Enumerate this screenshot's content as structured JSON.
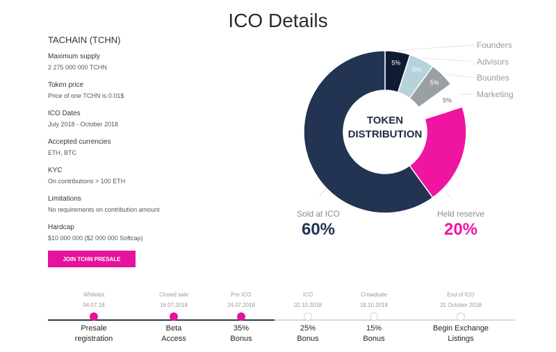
{
  "page": {
    "title": "ICO Details"
  },
  "details": {
    "token_name": "TACHAIN (TCHN)",
    "items": [
      {
        "label": "Maximum supply",
        "value": "2 275 000 000 TCHN"
      },
      {
        "label": "Token price",
        "value": "Price of one TCHN is 0.01$"
      },
      {
        "label": "ICO Dates",
        "value": "July 2018 - October 2018"
      },
      {
        "label": "Accepted currencies",
        "value": "ETH, BTC"
      },
      {
        "label": "KYC",
        "value": "On contributions > 100 ETH"
      },
      {
        "label": "Limitations",
        "value": "No requirements on contribution amount"
      },
      {
        "label": "Hardcap",
        "value": "$10 000 000 ($2 000 000 Softcap)"
      }
    ],
    "button": "JOIN TCHN PRESALE"
  },
  "chart_data": {
    "type": "pie",
    "donut": true,
    "center_title": [
      "TOKEN",
      "DISTRIBUTION"
    ],
    "slices": [
      {
        "name": "Founders",
        "value": 5,
        "label": "5%",
        "color": "#0e1b33"
      },
      {
        "name": "Advisors",
        "value": 5,
        "label": "5%",
        "color": "#b6d3dc"
      },
      {
        "name": "Bounties",
        "value": 5,
        "label": "5%",
        "color": "#9a9fa4"
      },
      {
        "name": "Marketing",
        "value": 5,
        "label": "5%",
        "color": "#ffffff"
      },
      {
        "name": "Held reserve",
        "value": 20,
        "label": "20%",
        "color": "#ef14a2"
      },
      {
        "name": "Sold at ICO",
        "value": 60,
        "label": "60%",
        "color": "#233352"
      }
    ],
    "legend": [
      "Founders",
      "Advisors",
      "Bounties",
      "Marketing"
    ],
    "legend_position": "right",
    "callouts": [
      {
        "caption": "Sold at ICO",
        "value": "60%",
        "color": "#233352"
      },
      {
        "caption": "Held reserve",
        "value": "20%",
        "color": "#ef14a2"
      }
    ]
  },
  "timeline": {
    "colors": {
      "done": "#e6139c",
      "line_done": "#2a3550",
      "line_todo": "#d8d8d8"
    },
    "steps": [
      {
        "name": "Whitelist",
        "date": "04.07.18",
        "title": [
          "Presale",
          "registration"
        ],
        "done": true
      },
      {
        "name": "Closed sale",
        "date": "16.07.2018",
        "title": [
          "Beta",
          "Access"
        ],
        "done": true
      },
      {
        "name": "Pre ICO",
        "date": "24.07.2018",
        "title": [
          "35%",
          "Bonus"
        ],
        "done": true
      },
      {
        "name": "ICO",
        "date": "02.10.2018",
        "title": [
          "25%",
          "Bonus"
        ],
        "done": false
      },
      {
        "name": "Crowdsale",
        "date": "18.10.2018",
        "title": [
          "15%",
          "Bonus"
        ],
        "done": false
      },
      {
        "name": "End of ICO",
        "date": "31 October 2018",
        "title": [
          "Begin Exchange",
          "Listings"
        ],
        "done": false
      }
    ]
  }
}
